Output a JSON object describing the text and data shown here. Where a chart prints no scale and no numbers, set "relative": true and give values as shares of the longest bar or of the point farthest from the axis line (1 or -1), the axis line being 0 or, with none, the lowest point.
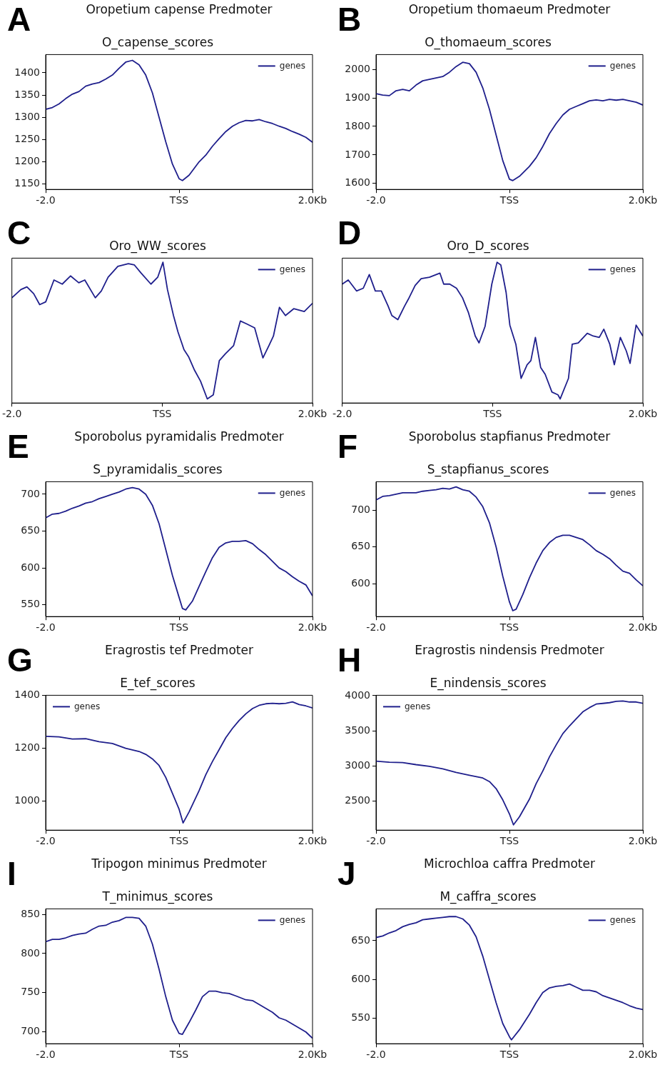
{
  "chart_data": [
    {
      "type": "line",
      "title": "Oropetium capense Predmoter",
      "subtitle": "O_capense_scores",
      "annotations": [
        "A"
      ],
      "xlim": [
        -2,
        2
      ],
      "xticks": [
        {
          "value": -2,
          "label": "-2.0"
        },
        {
          "value": 0,
          "label": "TSS"
        },
        {
          "value": 2,
          "label": "2.0Kb"
        }
      ],
      "ylim": [
        1138,
        1441
      ],
      "yticks": [
        1150,
        1200,
        1250,
        1300,
        1350,
        1400
      ],
      "legend": "top right",
      "grid": false,
      "series": [
        {
          "name": "genes",
          "color": "#1f1f8c",
          "x": [
            -2,
            -1.9,
            -1.8,
            -1.7,
            -1.6,
            -1.5,
            -1.4,
            -1.3,
            -1.2,
            -1.1,
            -1,
            -0.9,
            -0.8,
            -0.7,
            -0.6,
            -0.5,
            -0.4,
            -0.3,
            -0.2,
            -0.1,
            0,
            0.05,
            0.15,
            0.3,
            0.4,
            0.5,
            0.6,
            0.7,
            0.8,
            0.9,
            1,
            1.1,
            1.2,
            1.3,
            1.4,
            1.5,
            1.6,
            1.7,
            1.8,
            1.9,
            2
          ],
          "values": [
            1318,
            1322,
            1330,
            1342,
            1352,
            1358,
            1370,
            1375,
            1378,
            1386,
            1395,
            1410,
            1424,
            1428,
            1418,
            1395,
            1355,
            1300,
            1245,
            1195,
            1162,
            1158,
            1170,
            1200,
            1215,
            1235,
            1252,
            1268,
            1280,
            1288,
            1293,
            1292,
            1295,
            1290,
            1286,
            1280,
            1275,
            1268,
            1262,
            1255,
            1244
          ]
        }
      ]
    },
    {
      "type": "line",
      "title": "Oropetium thomaeum Predmoter",
      "subtitle": "O_thomaeum_scores",
      "annotations": [
        "B"
      ],
      "xlim": [
        -2,
        2
      ],
      "xticks": [
        {
          "value": -2,
          "label": "-2.0"
        },
        {
          "value": 0,
          "label": "TSS"
        },
        {
          "value": 2,
          "label": "2.0Kb"
        }
      ],
      "ylim": [
        1579,
        2052
      ],
      "yticks": [
        1600,
        1700,
        1800,
        1900,
        2000
      ],
      "legend": "top right",
      "grid": false,
      "series": [
        {
          "name": "genes",
          "color": "#1f1f8c",
          "x": [
            -2,
            -1.9,
            -1.8,
            -1.7,
            -1.6,
            -1.5,
            -1.4,
            -1.3,
            -1.2,
            -1.1,
            -1,
            -0.9,
            -0.8,
            -0.7,
            -0.6,
            -0.5,
            -0.4,
            -0.3,
            -0.2,
            -0.1,
            0,
            0.05,
            0.15,
            0.3,
            0.4,
            0.5,
            0.6,
            0.7,
            0.8,
            0.9,
            1,
            1.1,
            1.2,
            1.3,
            1.4,
            1.5,
            1.6,
            1.7,
            1.8,
            1.9,
            2
          ],
          "values": [
            1915,
            1910,
            1908,
            1925,
            1930,
            1925,
            1945,
            1960,
            1965,
            1970,
            1975,
            1990,
            2010,
            2025,
            2020,
            1990,
            1935,
            1860,
            1770,
            1680,
            1615,
            1610,
            1625,
            1660,
            1690,
            1730,
            1775,
            1810,
            1840,
            1860,
            1870,
            1880,
            1890,
            1893,
            1890,
            1895,
            1892,
            1895,
            1890,
            1885,
            1875
          ]
        }
      ]
    },
    {
      "type": "line",
      "title": "Oro_WW_scores",
      "annotations": [
        "C"
      ],
      "relative": true,
      "xlim": [
        -2,
        2
      ],
      "xticks": [
        {
          "value": -2,
          "label": "-2.0"
        },
        {
          "value": 0,
          "label": "TSS"
        },
        {
          "value": 2,
          "label": "2.0Kb"
        }
      ],
      "legend": "top right",
      "grid": false,
      "series": [
        {
          "name": "genes",
          "color": "#1f1f8c",
          "x": [
            -2,
            -1.88,
            -1.8,
            -1.71,
            -1.63,
            -1.55,
            -1.44,
            -1.33,
            -1.22,
            -1.11,
            -1.03,
            -0.89,
            -0.81,
            -0.72,
            -0.59,
            -0.45,
            -0.37,
            -0.28,
            -0.15,
            -0.06,
            0.01,
            0.07,
            0.15,
            0.21,
            0.29,
            0.35,
            0.43,
            0.51,
            0.6,
            0.68,
            0.76,
            0.84,
            0.95,
            1.04,
            1.12,
            1.23,
            1.34,
            1.42,
            1.48,
            1.56,
            1.64,
            1.75,
            1.89,
            2
          ],
          "values": [
            0.74,
            0.8,
            0.82,
            0.77,
            0.69,
            0.71,
            0.87,
            0.84,
            0.9,
            0.85,
            0.87,
            0.74,
            0.79,
            0.89,
            0.97,
            0.99,
            0.98,
            0.92,
            0.84,
            0.89,
            1,
            0.8,
            0.61,
            0.49,
            0.36,
            0.31,
            0.21,
            0.13,
            0,
            0.03,
            0.28,
            0.33,
            0.39,
            0.57,
            0.55,
            0.52,
            0.3,
            0.39,
            0.46,
            0.67,
            0.61,
            0.66,
            0.64,
            0.7
          ]
        }
      ]
    },
    {
      "type": "line",
      "title": "Oro_D_scores",
      "annotations": [
        "D"
      ],
      "relative": true,
      "xlim": [
        -2,
        2
      ],
      "xticks": [
        {
          "value": -2,
          "label": "-2.0"
        },
        {
          "value": 0,
          "label": "TSS"
        },
        {
          "value": 2,
          "label": "2.0Kb"
        }
      ],
      "legend": "top right",
      "grid": false,
      "series": [
        {
          "name": "genes",
          "color": "#1f1f8c",
          "x": [
            -2,
            -1.92,
            -1.81,
            -1.72,
            -1.64,
            -1.56,
            -1.48,
            -1.39,
            -1.34,
            -1.26,
            -1.17,
            -1.12,
            -1.03,
            -0.95,
            -0.84,
            -0.7,
            -0.65,
            -0.57,
            -0.48,
            -0.4,
            -0.32,
            -0.23,
            -0.18,
            -0.1,
            -0.01,
            0.06,
            0.11,
            0.18,
            0.23,
            0.31,
            0.38,
            0.46,
            0.51,
            0.57,
            0.64,
            0.7,
            0.79,
            0.87,
            0.9,
            1.01,
            1.06,
            1.14,
            1.26,
            1.34,
            1.42,
            1.48,
            1.56,
            1.62,
            1.7,
            1.78,
            1.83,
            1.91,
            2
          ],
          "values": [
            0.84,
            0.87,
            0.79,
            0.81,
            0.91,
            0.79,
            0.79,
            0.68,
            0.61,
            0.58,
            0.68,
            0.73,
            0.83,
            0.88,
            0.89,
            0.92,
            0.84,
            0.84,
            0.81,
            0.74,
            0.63,
            0.46,
            0.41,
            0.53,
            0.84,
            1,
            0.98,
            0.78,
            0.54,
            0.4,
            0.15,
            0.25,
            0.28,
            0.45,
            0.23,
            0.18,
            0.05,
            0.03,
            0,
            0.15,
            0.4,
            0.41,
            0.48,
            0.46,
            0.45,
            0.51,
            0.4,
            0.25,
            0.45,
            0.35,
            0.26,
            0.54,
            0.46
          ]
        }
      ]
    },
    {
      "type": "line",
      "title": "Sporobolus pyramidalis Predmoter",
      "subtitle": "S_pyramidalis_scores",
      "annotations": [
        "E"
      ],
      "xlim": [
        -2,
        2
      ],
      "xticks": [
        {
          "value": -2,
          "label": "-2.0"
        },
        {
          "value": 0,
          "label": "TSS"
        },
        {
          "value": 2,
          "label": "2.0Kb"
        }
      ],
      "ylim": [
        534,
        717
      ],
      "yticks": [
        550,
        600,
        650,
        700
      ],
      "legend": "top right",
      "grid": false,
      "series": [
        {
          "name": "genes",
          "color": "#1f1f8c",
          "x": [
            -2,
            -1.9,
            -1.8,
            -1.7,
            -1.6,
            -1.5,
            -1.4,
            -1.3,
            -1.2,
            -1.1,
            -1,
            -0.9,
            -0.8,
            -0.7,
            -0.6,
            -0.5,
            -0.4,
            -0.3,
            -0.2,
            -0.1,
            0,
            0.05,
            0.1,
            0.2,
            0.3,
            0.4,
            0.5,
            0.6,
            0.7,
            0.8,
            0.9,
            1,
            1.1,
            1.2,
            1.3,
            1.4,
            1.5,
            1.6,
            1.7,
            1.8,
            1.9,
            2
          ],
          "values": [
            668,
            673,
            674,
            677,
            681,
            684,
            688,
            690,
            694,
            697,
            700,
            703,
            707,
            709,
            707,
            700,
            685,
            660,
            625,
            590,
            560,
            545,
            543,
            555,
            575,
            595,
            614,
            628,
            634,
            636,
            636,
            637,
            633,
            625,
            618,
            609,
            600,
            595,
            588,
            582,
            577,
            562
          ]
        }
      ]
    },
    {
      "type": "line",
      "title": "Sporobolus stapfianus Predmoter",
      "subtitle": "S_stapfianus_scores",
      "annotations": [
        "F"
      ],
      "xlim": [
        -2,
        2
      ],
      "xticks": [
        {
          "value": -2,
          "label": "-2.0"
        },
        {
          "value": 0,
          "label": "TSS"
        },
        {
          "value": 2,
          "label": "2.0Kb"
        }
      ],
      "ylim": [
        555,
        739
      ],
      "yticks": [
        600,
        650,
        700
      ],
      "legend": "top right",
      "grid": false,
      "series": [
        {
          "name": "genes",
          "color": "#1f1f8c",
          "x": [
            -2,
            -1.9,
            -1.8,
            -1.7,
            -1.6,
            -1.5,
            -1.4,
            -1.3,
            -1.2,
            -1.1,
            -1,
            -0.9,
            -0.8,
            -0.7,
            -0.6,
            -0.5,
            -0.4,
            -0.3,
            -0.2,
            -0.1,
            0,
            0.05,
            0.1,
            0.2,
            0.3,
            0.4,
            0.5,
            0.6,
            0.7,
            0.8,
            0.9,
            1,
            1.1,
            1.2,
            1.3,
            1.4,
            1.5,
            1.6,
            1.7,
            1.8,
            1.9,
            2
          ],
          "values": [
            714,
            719,
            720,
            722,
            724,
            724,
            724,
            726,
            727,
            728,
            730,
            729,
            732,
            728,
            726,
            718,
            705,
            683,
            650,
            610,
            575,
            563,
            565,
            585,
            608,
            628,
            645,
            656,
            663,
            666,
            666,
            663,
            660,
            653,
            645,
            640,
            634,
            625,
            617,
            614,
            605,
            597
          ]
        }
      ]
    },
    {
      "type": "line",
      "title": "Eragrostis tef Predmoter",
      "subtitle": "E_tef_scores",
      "annotations": [
        "G"
      ],
      "xlim": [
        -2,
        2
      ],
      "xticks": [
        {
          "value": -2,
          "label": "-2.0"
        },
        {
          "value": 0,
          "label": "TSS"
        },
        {
          "value": 2,
          "label": "2.0Kb"
        }
      ],
      "ylim": [
        891,
        1400
      ],
      "yticks": [
        1000,
        1200,
        1400
      ],
      "legend": "top left",
      "grid": false,
      "series": [
        {
          "name": "genes",
          "color": "#1f1f8c",
          "x": [
            -2,
            -1.8,
            -1.6,
            -1.4,
            -1.2,
            -1,
            -0.8,
            -0.6,
            -0.5,
            -0.4,
            -0.3,
            -0.2,
            -0.1,
            0,
            0.06,
            0.15,
            0.3,
            0.4,
            0.5,
            0.6,
            0.7,
            0.8,
            0.9,
            1,
            1.1,
            1.2,
            1.3,
            1.4,
            1.5,
            1.6,
            1.7,
            1.8,
            1.9,
            2
          ],
          "values": [
            1245,
            1243,
            1235,
            1236,
            1225,
            1218,
            1200,
            1188,
            1177,
            1160,
            1135,
            1090,
            1030,
            970,
            918,
            960,
            1040,
            1100,
            1150,
            1195,
            1240,
            1275,
            1305,
            1330,
            1350,
            1362,
            1368,
            1370,
            1368,
            1370,
            1375,
            1365,
            1360,
            1352
          ]
        }
      ]
    },
    {
      "type": "line",
      "title": "Eragrostis nindensis Predmoter",
      "subtitle": "E_nindensis_scores",
      "annotations": [
        "H"
      ],
      "xlim": [
        -2,
        2
      ],
      "xticks": [
        {
          "value": -2,
          "label": "-2.0"
        },
        {
          "value": 0,
          "label": "TSS"
        },
        {
          "value": 2,
          "label": "2.0Kb"
        }
      ],
      "ylim": [
        2090,
        4005
      ],
      "yticks": [
        2500,
        3000,
        3500,
        4000
      ],
      "legend": "top left",
      "grid": false,
      "series": [
        {
          "name": "genes",
          "color": "#1f1f8c",
          "x": [
            -2,
            -1.8,
            -1.6,
            -1.4,
            -1.2,
            -1,
            -0.8,
            -0.6,
            -0.4,
            -0.3,
            -0.2,
            -0.1,
            0,
            0.06,
            0.15,
            0.3,
            0.4,
            0.5,
            0.6,
            0.7,
            0.8,
            0.9,
            1,
            1.1,
            1.2,
            1.3,
            1.4,
            1.5,
            1.6,
            1.7,
            1.8,
            1.9,
            2
          ],
          "values": [
            3070,
            3055,
            3050,
            3020,
            2995,
            2960,
            2910,
            2870,
            2830,
            2780,
            2680,
            2520,
            2320,
            2165,
            2280,
            2530,
            2750,
            2930,
            3130,
            3300,
            3460,
            3570,
            3670,
            3770,
            3830,
            3880,
            3890,
            3900,
            3920,
            3925,
            3910,
            3910,
            3890
          ]
        }
      ]
    },
    {
      "type": "line",
      "title": "Tripogon minimus Predmoter",
      "subtitle": "T_minimus_scores",
      "annotations": [
        "I"
      ],
      "xlim": [
        -2,
        2
      ],
      "xticks": [
        {
          "value": -2,
          "label": "-2.0"
        },
        {
          "value": 0,
          "label": "TSS"
        },
        {
          "value": 2,
          "label": "2.0Kb"
        }
      ],
      "ylim": [
        685,
        857
      ],
      "yticks": [
        700,
        750,
        800,
        850
      ],
      "legend": "top right",
      "grid": false,
      "series": [
        {
          "name": "genes",
          "color": "#1f1f8c",
          "x": [
            -2,
            -1.9,
            -1.8,
            -1.7,
            -1.6,
            -1.5,
            -1.4,
            -1.3,
            -1.2,
            -1.1,
            -1,
            -0.9,
            -0.8,
            -0.7,
            -0.6,
            -0.5,
            -0.4,
            -0.3,
            -0.2,
            -0.1,
            0,
            0.05,
            0.15,
            0.25,
            0.35,
            0.45,
            0.55,
            0.65,
            0.75,
            0.85,
            1,
            1.1,
            1.2,
            1.3,
            1.4,
            1.5,
            1.6,
            1.7,
            1.8,
            1.9,
            2
          ],
          "values": [
            815,
            818,
            818,
            820,
            823,
            825,
            826,
            831,
            835,
            836,
            840,
            842,
            846,
            846,
            845,
            835,
            812,
            780,
            745,
            715,
            698,
            697,
            712,
            728,
            745,
            752,
            752,
            750,
            749,
            746,
            741,
            740,
            735,
            730,
            725,
            718,
            715,
            710,
            705,
            700,
            692
          ]
        }
      ]
    },
    {
      "type": "line",
      "title": "Microchloa caffra Predmoter",
      "subtitle": "M_caffra_scores",
      "annotations": [
        "J"
      ],
      "xlim": [
        -2,
        2
      ],
      "xticks": [
        {
          "value": -2,
          "label": "-2.0"
        },
        {
          "value": 0,
          "label": "TSS"
        },
        {
          "value": 2,
          "label": "2.0Kb"
        }
      ],
      "ylim": [
        517,
        691
      ],
      "yticks": [
        550,
        600,
        650
      ],
      "legend": "top right",
      "grid": false,
      "series": [
        {
          "name": "genes",
          "color": "#1f1f8c",
          "x": [
            -2,
            -1.9,
            -1.8,
            -1.7,
            -1.6,
            -1.5,
            -1.4,
            -1.3,
            -1.2,
            -1.1,
            -1,
            -0.9,
            -0.8,
            -0.7,
            -0.6,
            -0.5,
            -0.4,
            -0.3,
            -0.2,
            -0.1,
            0,
            0.03,
            0.15,
            0.3,
            0.4,
            0.5,
            0.6,
            0.7,
            0.8,
            0.9,
            1,
            1.1,
            1.2,
            1.3,
            1.4,
            1.5,
            1.6,
            1.7,
            1.8,
            1.9,
            2
          ],
          "values": [
            654,
            656,
            660,
            663,
            668,
            671,
            673,
            677,
            678,
            679,
            680,
            681,
            681,
            678,
            670,
            655,
            630,
            600,
            570,
            543,
            526,
            522,
            535,
            555,
            570,
            583,
            589,
            591,
            592,
            594,
            590,
            586,
            586,
            584,
            579,
            576,
            573,
            570,
            566,
            563,
            561
          ]
        }
      ]
    }
  ]
}
